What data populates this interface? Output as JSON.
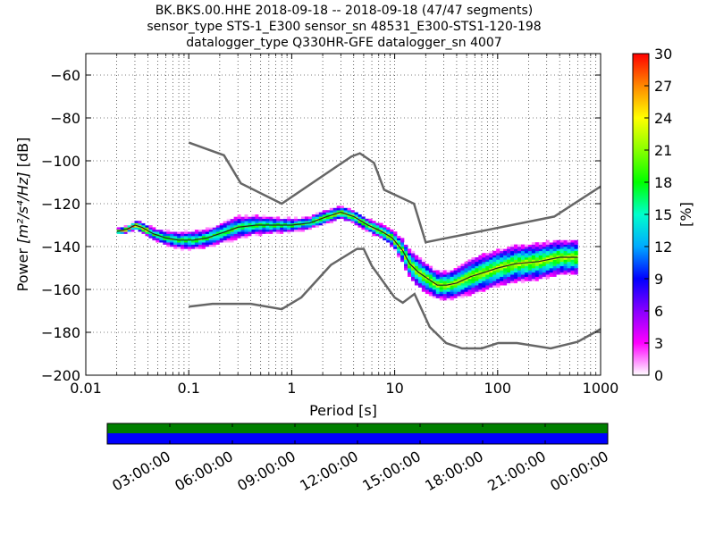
{
  "chart_data": {
    "type": "heatmap",
    "title_lines": [
      "BK.BKS.00.HHE   2018-09-18 -- 2018-09-18  (47/47 segments)",
      "sensor_type STS-1_E300 sensor_sn 48531_E300-STS1-120-198",
      "datalogger_type Q330HR-GFE datalogger_sn 4007"
    ],
    "xlabel": "Period [s]",
    "ylabel_prefix": "Power ",
    "ylabel_units": "[m²/s⁴/Hz]",
    "ylabel_suffix": " [dB]",
    "x_scale": "log",
    "xlim": [
      0.01,
      1000
    ],
    "x_ticks": [
      {
        "value": 0.01,
        "label": "0.01"
      },
      {
        "value": 0.1,
        "label": "0.1"
      },
      {
        "value": 1,
        "label": "1"
      },
      {
        "value": 10,
        "label": "10"
      },
      {
        "value": 100,
        "label": "100"
      },
      {
        "value": 1000,
        "label": "1000"
      }
    ],
    "ylim": [
      -200,
      -50
    ],
    "y_ticks": [
      {
        "value": -60,
        "label": "−60"
      },
      {
        "value": -80,
        "label": "−80"
      },
      {
        "value": -100,
        "label": "−100"
      },
      {
        "value": -120,
        "label": "−120"
      },
      {
        "value": -140,
        "label": "−140"
      },
      {
        "value": -160,
        "label": "−160"
      },
      {
        "value": -180,
        "label": "−180"
      },
      {
        "value": -200,
        "label": "−200"
      }
    ],
    "grid": true,
    "colorbar": {
      "label": "[%]",
      "range": [
        0,
        30
      ],
      "ticks": [
        {
          "value": 0,
          "label": "0"
        },
        {
          "value": 3,
          "label": "3"
        },
        {
          "value": 6,
          "label": "6"
        },
        {
          "value": 9,
          "label": "9"
        },
        {
          "value": 12,
          "label": "12"
        },
        {
          "value": 15,
          "label": "15"
        },
        {
          "value": 18,
          "label": "18"
        },
        {
          "value": 21,
          "label": "21"
        },
        {
          "value": 24,
          "label": "24"
        },
        {
          "value": 27,
          "label": "27"
        },
        {
          "value": 30,
          "label": "30"
        }
      ],
      "stops": [
        "#ffffff",
        "#ff00ff",
        "#8800ff",
        "#0000ff",
        "#00aaff",
        "#00ffcc",
        "#00ff00",
        "#88ff00",
        "#ffff00",
        "#ff8800",
        "#ff0000"
      ]
    },
    "nhnm": {
      "periods": [
        0.1,
        0.22,
        0.32,
        0.8,
        3.8,
        4.6,
        6.3,
        7.9,
        15.4,
        20,
        354.8,
        1000
      ],
      "values": [
        -91.5,
        -97.4,
        -110.5,
        -120,
        -98,
        -96.5,
        -101,
        -113.5,
        -120,
        -138,
        -126,
        -112
      ]
    },
    "nlnm": {
      "periods": [
        0.1,
        0.17,
        0.4,
        0.8,
        1.24,
        2.4,
        4.3,
        5,
        6,
        10,
        12,
        15.6,
        21.9,
        31.6,
        45,
        70,
        101,
        154,
        328,
        600,
        1000
      ],
      "values": [
        -168,
        -166.7,
        -166.7,
        -169.2,
        -163.7,
        -148.6,
        -141.1,
        -141.1,
        -149,
        -163.8,
        -166.2,
        -162.1,
        -177.5,
        -185,
        -187.5,
        -187.5,
        -185,
        -185,
        -187.5,
        -184.4,
        -178.5
      ]
    },
    "mode_curve": {
      "periods": [
        0.02,
        0.025,
        0.03,
        0.035,
        0.045,
        0.06,
        0.08,
        0.11,
        0.15,
        0.2,
        0.3,
        0.45,
        0.7,
        1.0,
        1.5,
        2.2,
        3.0,
        4.0,
        5.5,
        7.5,
        9.5,
        12,
        14,
        17,
        21,
        26,
        32,
        40,
        55,
        75,
        100,
        150,
        250,
        400,
        600
      ],
      "values": [
        -133,
        -132,
        -130,
        -131,
        -134,
        -136,
        -137,
        -137,
        -136,
        -134,
        -131,
        -130,
        -130,
        -130,
        -129,
        -126,
        -124,
        -126,
        -130,
        -133,
        -136,
        -142,
        -148,
        -152,
        -155,
        -158,
        -158,
        -157,
        -154,
        -152,
        -150,
        -148,
        -147,
        -145,
        -145
      ]
    },
    "spread": {
      "periods": [
        0.02,
        0.03,
        0.04,
        0.06,
        0.08,
        0.1,
        0.15,
        0.2,
        0.3,
        0.5,
        0.8,
        1.2,
        2,
        3,
        4,
        6,
        8,
        10,
        13,
        16,
        20,
        25,
        32,
        40,
        55,
        75,
        100,
        150,
        250,
        400,
        600
      ],
      "halfwidth": [
        1.5,
        2.5,
        3,
        4,
        4.5,
        5,
        5,
        5.5,
        6,
        5,
        4,
        3.5,
        3,
        3,
        3,
        3,
        3.5,
        4,
        6,
        7,
        7,
        6.5,
        6.5,
        7,
        8,
        8.5,
        8.5,
        8.5,
        8.5,
        8,
        8
      ]
    },
    "timeline": {
      "tick_labels": [
        "03:00:00",
        "06:00:00",
        "09:00:00",
        "12:00:00",
        "15:00:00",
        "18:00:00",
        "21:00:00",
        "00:00:00"
      ],
      "tick_hours": [
        3,
        6,
        9,
        12,
        15,
        18,
        21,
        24
      ],
      "range_hours": [
        0,
        24
      ],
      "top_color": "#007f00",
      "bottom_color": "#0000ff"
    }
  }
}
